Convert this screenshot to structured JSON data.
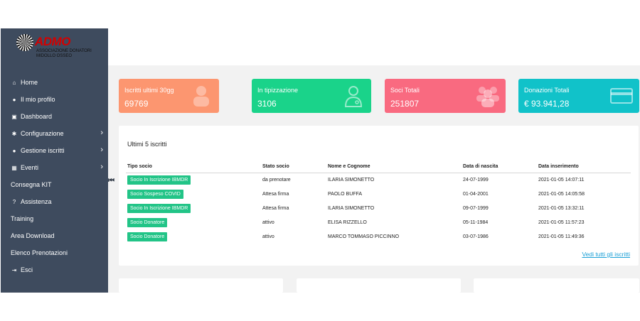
{
  "logo": {
    "brand": "ADMO",
    "line1": "ASSOCIAZIONE DONATORI",
    "line2": "MIDOLLO OSSEO"
  },
  "sidebar": {
    "items": [
      {
        "label": "Home",
        "icon": "home-icon",
        "glyph": "⌂",
        "has_submenu": false
      },
      {
        "label": "Il mio profilo",
        "icon": "user-icon",
        "glyph": "●",
        "has_submenu": false
      },
      {
        "label": "Dashboard",
        "icon": "dashboard-icon",
        "glyph": "▣",
        "has_submenu": false
      },
      {
        "label": "Configurazione",
        "icon": "gear-icon",
        "glyph": "✱",
        "has_submenu": true
      },
      {
        "label": "Gestione iscritti",
        "icon": "users-icon",
        "glyph": "●",
        "has_submenu": true
      },
      {
        "label": "Eventi",
        "icon": "calendar-icon",
        "glyph": "▦",
        "has_submenu": true
      },
      {
        "label": "Consegna KIT",
        "icon": "",
        "glyph": "",
        "has_submenu": false
      },
      {
        "label": "Assistenza",
        "icon": "question-icon",
        "glyph": "?",
        "has_submenu": false
      },
      {
        "label": "Training",
        "icon": "",
        "glyph": "",
        "has_submenu": false
      },
      {
        "label": "Area Download",
        "icon": "",
        "glyph": "",
        "has_submenu": false
      },
      {
        "label": "Elenco Prenotazioni",
        "icon": "",
        "glyph": "",
        "has_submenu": false
      },
      {
        "label": "Esci",
        "icon": "logout-icon",
        "glyph": "⇥",
        "has_submenu": false
      }
    ]
  },
  "cards": [
    {
      "label": "Iscritti ultimi 30gg",
      "value": "69769",
      "color": "#fc9670",
      "icon": "user-icon"
    },
    {
      "label": "In tipizzazione",
      "value": "3106",
      "color": "#1ad38a",
      "icon": "doctor-icon"
    },
    {
      "label": "Soci Totali",
      "value": "251807",
      "color": "#f96a80",
      "icon": "users-group-icon"
    },
    {
      "label": "Donazioni Totali",
      "value": "€ 93.941,28",
      "color": "#11c2c9",
      "icon": "credit-card-icon"
    }
  ],
  "recent": {
    "title": "Ultimi 5 iscritti",
    "columns": [
      "Tipo socio",
      "Stato socio",
      "Nome e Cognome",
      "Data di nascita",
      "Data inserimento"
    ],
    "rows": [
      {
        "type": "Socio In Iscrizione IBMDR",
        "status": "da prenotare",
        "name": "ILARIA SIMONETTO",
        "birth": "24-07-1999",
        "inserted": "2021-01-05 14:07:11"
      },
      {
        "type": "Socio Sospeso COVID",
        "status": "Attesa firma",
        "name": "PAOLO BUFFA",
        "birth": "01-04-2001",
        "inserted": "2021-01-05 14:05:58"
      },
      {
        "type": "Socio In Iscrizione IBMDR",
        "status": "Attesa firma",
        "name": "ILARIA SIMONETTO",
        "birth": "09-07-1999",
        "inserted": "2021-01-05 13:32:11"
      },
      {
        "type": "Socio Donatore",
        "status": "attivo",
        "name": "ELISA RIZZELLO",
        "birth": "05-11-1984",
        "inserted": "2021-01-05 11:57:23"
      },
      {
        "type": "Socio Donatore",
        "status": "attivo",
        "name": "MARCO TOMMASO PICCINNO",
        "birth": "03-07-1986",
        "inserted": "2021-01-05 11:49:36"
      }
    ],
    "see_all": "Vedi tutti gli iscritti",
    "accent": "#22c487"
  }
}
